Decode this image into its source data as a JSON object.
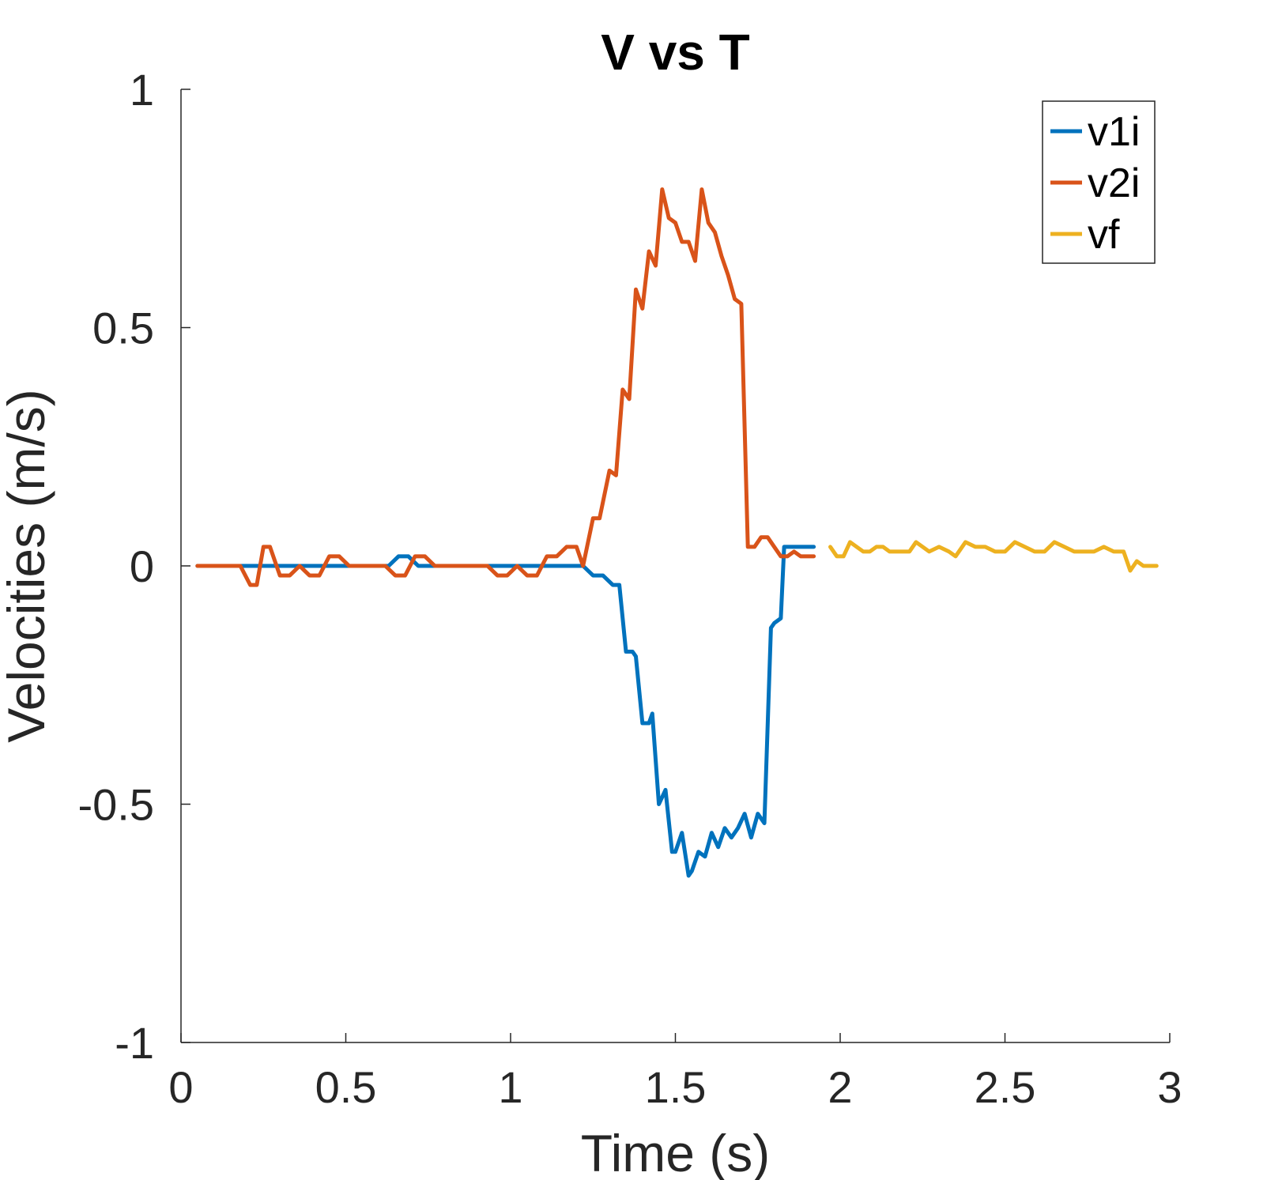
{
  "chart_data": {
    "type": "line",
    "title": "V vs T",
    "xlabel": "Time (s)",
    "ylabel": "Velocities (m/s)",
    "xlim": [
      0,
      3
    ],
    "ylim": [
      -1,
      1
    ],
    "xticks": [
      0,
      0.5,
      1,
      1.5,
      2,
      2.5,
      3
    ],
    "xtick_labels": [
      "0",
      "0.5",
      "1",
      "1.5",
      "2",
      "2.5",
      "3"
    ],
    "yticks": [
      -1,
      -0.5,
      0,
      0.5,
      1
    ],
    "ytick_labels": [
      "-1",
      "-0.5",
      "0",
      "0.5",
      "1"
    ],
    "grid": false,
    "legend_position": "top-right",
    "series": [
      {
        "name": "v1i",
        "color": "#0072BD",
        "x": [
          0.05,
          0.63,
          0.66,
          0.69,
          0.72,
          1.22,
          1.25,
          1.28,
          1.31,
          1.33,
          1.35,
          1.37,
          1.38,
          1.4,
          1.42,
          1.43,
          1.45,
          1.47,
          1.49,
          1.5,
          1.52,
          1.54,
          1.55,
          1.57,
          1.59,
          1.61,
          1.63,
          1.65,
          1.67,
          1.69,
          1.71,
          1.73,
          1.75,
          1.77,
          1.79,
          1.8,
          1.82,
          1.83,
          1.85,
          1.87,
          1.89,
          1.92
        ],
        "y": [
          0.0,
          0.0,
          0.02,
          0.02,
          0.0,
          0.0,
          -0.02,
          -0.02,
          -0.04,
          -0.04,
          -0.18,
          -0.18,
          -0.19,
          -0.33,
          -0.33,
          -0.31,
          -0.5,
          -0.47,
          -0.6,
          -0.6,
          -0.56,
          -0.65,
          -0.64,
          -0.6,
          -0.61,
          -0.56,
          -0.59,
          -0.55,
          -0.57,
          -0.55,
          -0.52,
          -0.57,
          -0.52,
          -0.54,
          -0.13,
          -0.12,
          -0.11,
          0.04,
          0.04,
          0.04,
          0.04,
          0.04
        ]
      },
      {
        "name": "v2i",
        "color": "#D95319",
        "x": [
          0.05,
          0.18,
          0.21,
          0.23,
          0.25,
          0.27,
          0.3,
          0.33,
          0.36,
          0.39,
          0.42,
          0.45,
          0.48,
          0.51,
          0.62,
          0.65,
          0.68,
          0.71,
          0.74,
          0.77,
          0.93,
          0.96,
          0.99,
          1.02,
          1.05,
          1.08,
          1.11,
          1.14,
          1.17,
          1.2,
          1.22,
          1.25,
          1.27,
          1.3,
          1.32,
          1.34,
          1.36,
          1.38,
          1.4,
          1.42,
          1.44,
          1.46,
          1.48,
          1.5,
          1.52,
          1.54,
          1.56,
          1.58,
          1.6,
          1.62,
          1.64,
          1.66,
          1.68,
          1.7,
          1.72,
          1.74,
          1.76,
          1.78,
          1.8,
          1.82,
          1.84,
          1.86,
          1.88,
          1.9,
          1.92
        ],
        "y": [
          0.0,
          0.0,
          -0.04,
          -0.04,
          0.04,
          0.04,
          -0.02,
          -0.02,
          0.0,
          -0.02,
          -0.02,
          0.02,
          0.02,
          0.0,
          0.0,
          -0.02,
          -0.02,
          0.02,
          0.02,
          0.0,
          0.0,
          -0.02,
          -0.02,
          0.0,
          -0.02,
          -0.02,
          0.02,
          0.02,
          0.04,
          0.04,
          0.0,
          0.1,
          0.1,
          0.2,
          0.19,
          0.37,
          0.35,
          0.58,
          0.54,
          0.66,
          0.63,
          0.79,
          0.73,
          0.72,
          0.68,
          0.68,
          0.64,
          0.79,
          0.72,
          0.7,
          0.65,
          0.61,
          0.56,
          0.55,
          0.04,
          0.04,
          0.06,
          0.06,
          0.04,
          0.02,
          0.02,
          0.03,
          0.02,
          0.02,
          0.02
        ]
      },
      {
        "name": "vf",
        "color": "#EDB120",
        "x": [
          1.97,
          1.99,
          2.01,
          2.03,
          2.05,
          2.07,
          2.09,
          2.11,
          2.13,
          2.15,
          2.17,
          2.19,
          2.21,
          2.23,
          2.25,
          2.27,
          2.3,
          2.33,
          2.35,
          2.38,
          2.41,
          2.44,
          2.47,
          2.5,
          2.53,
          2.56,
          2.59,
          2.62,
          2.65,
          2.68,
          2.71,
          2.74,
          2.77,
          2.8,
          2.83,
          2.86,
          2.88,
          2.9,
          2.92,
          2.94,
          2.96
        ],
        "y": [
          0.04,
          0.02,
          0.02,
          0.05,
          0.04,
          0.03,
          0.03,
          0.04,
          0.04,
          0.03,
          0.03,
          0.03,
          0.03,
          0.05,
          0.04,
          0.03,
          0.04,
          0.03,
          0.02,
          0.05,
          0.04,
          0.04,
          0.03,
          0.03,
          0.05,
          0.04,
          0.03,
          0.03,
          0.05,
          0.04,
          0.03,
          0.03,
          0.03,
          0.04,
          0.03,
          0.03,
          -0.01,
          0.01,
          0.0,
          0.0,
          0.0
        ]
      }
    ]
  }
}
